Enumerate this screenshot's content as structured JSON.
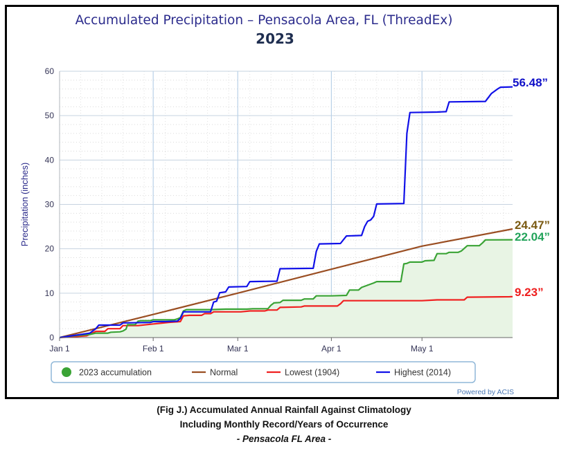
{
  "chart_data": {
    "type": "line",
    "title": "Accumulated Precipitation – Pensacola Area, FL (ThreadEx)",
    "subtitle": "2023",
    "ylabel": "Precipitation (inches)",
    "xlabel": "",
    "ylim": [
      0,
      60
    ],
    "xlim": [
      0,
      150
    ],
    "y_ticks": [
      0,
      10,
      20,
      30,
      40,
      50,
      60
    ],
    "x_ticks": [
      {
        "day": 0,
        "label": "Jan 1"
      },
      {
        "day": 31,
        "label": "Feb 1"
      },
      {
        "day": 59,
        "label": "Mar 1"
      },
      {
        "day": 90,
        "label": "Apr 1"
      },
      {
        "day": 120,
        "label": "May 1"
      }
    ],
    "x_unit": "days since Jan 1",
    "grid": true,
    "legend_position": "bottom",
    "credit": "Powered by ACIS",
    "series": [
      {
        "name": "2023 accumulation",
        "color": "#3aa335",
        "fill": "#e8f4e4",
        "end_label": "22.04”",
        "end_label_color": "#22a35a",
        "points": [
          [
            0,
            0
          ],
          [
            3,
            0.3
          ],
          [
            8,
            0.6
          ],
          [
            10,
            0.7
          ],
          [
            12,
            1.0
          ],
          [
            16,
            1.0
          ],
          [
            17,
            1.2
          ],
          [
            20,
            1.3
          ],
          [
            21,
            1.5
          ],
          [
            22,
            1.9
          ],
          [
            22.5,
            2.9
          ],
          [
            25,
            2.9
          ],
          [
            26,
            3.7
          ],
          [
            27,
            3.8
          ],
          [
            30,
            3.8
          ],
          [
            31,
            4.0
          ],
          [
            38,
            4.0
          ],
          [
            39,
            4.2
          ],
          [
            40,
            4.5
          ],
          [
            41,
            6.0
          ],
          [
            42,
            6.3
          ],
          [
            50,
            6.3
          ],
          [
            55,
            6.4
          ],
          [
            62,
            6.4
          ],
          [
            64,
            6.5
          ],
          [
            69,
            6.5
          ],
          [
            70,
            7.3
          ],
          [
            71,
            7.8
          ],
          [
            73,
            7.9
          ],
          [
            74,
            8.4
          ],
          [
            80,
            8.4
          ],
          [
            81,
            8.7
          ],
          [
            84,
            8.7
          ],
          [
            85,
            9.4
          ],
          [
            90,
            9.4
          ],
          [
            95,
            9.5
          ],
          [
            96,
            10.7
          ],
          [
            99,
            10.7
          ],
          [
            100,
            11.3
          ],
          [
            104,
            12.3
          ],
          [
            105,
            12.6
          ],
          [
            113,
            12.6
          ],
          [
            114,
            16.6
          ],
          [
            115,
            16.7
          ],
          [
            116,
            17.0
          ],
          [
            120,
            17.0
          ],
          [
            121,
            17.3
          ],
          [
            124,
            17.4
          ],
          [
            125,
            18.9
          ],
          [
            128,
            18.9
          ],
          [
            129,
            19.2
          ],
          [
            132,
            19.2
          ],
          [
            133,
            19.5
          ],
          [
            135,
            20.7
          ],
          [
            139,
            20.7
          ],
          [
            140,
            21.3
          ],
          [
            141,
            22.0
          ],
          [
            150,
            22.04
          ]
        ]
      },
      {
        "name": "Normal",
        "color": "#9a4e22",
        "end_label": "24.47”",
        "end_label_color": "#7a5a12",
        "points": [
          [
            0,
            0
          ],
          [
            31,
            5.2
          ],
          [
            59,
            10.0
          ],
          [
            90,
            15.4
          ],
          [
            120,
            20.6
          ],
          [
            150,
            24.47
          ]
        ]
      },
      {
        "name": "Lowest (1904)",
        "color": "#f02020",
        "end_label": "9.23”",
        "end_label_color": "#ee1d1d",
        "points": [
          [
            0,
            0
          ],
          [
            5,
            0.2
          ],
          [
            9,
            0.4
          ],
          [
            12,
            1.4
          ],
          [
            15,
            1.4
          ],
          [
            16,
            2.0
          ],
          [
            20,
            2.0
          ],
          [
            21,
            2.7
          ],
          [
            26,
            2.7
          ],
          [
            30,
            3.0
          ],
          [
            33,
            3.2
          ],
          [
            36,
            3.4
          ],
          [
            40,
            3.6
          ],
          [
            41,
            4.9
          ],
          [
            43,
            5.0
          ],
          [
            47,
            5.0
          ],
          [
            48,
            5.4
          ],
          [
            50,
            5.4
          ],
          [
            51,
            5.8
          ],
          [
            60,
            5.8
          ],
          [
            63,
            6.0
          ],
          [
            68,
            6.0
          ],
          [
            69,
            6.2
          ],
          [
            72,
            6.2
          ],
          [
            73,
            6.8
          ],
          [
            80,
            6.9
          ],
          [
            81,
            7.1
          ],
          [
            92,
            7.1
          ],
          [
            93,
            7.6
          ],
          [
            94,
            8.3
          ],
          [
            120,
            8.3
          ],
          [
            125,
            8.5
          ],
          [
            134,
            8.5
          ],
          [
            135,
            9.1
          ],
          [
            149,
            9.2
          ],
          [
            150,
            9.23
          ]
        ]
      },
      {
        "name": "Highest (2014)",
        "color": "#1010e8",
        "end_label": "56.48”",
        "end_label_color": "#1010c8",
        "points": [
          [
            0,
            0
          ],
          [
            5,
            0.5
          ],
          [
            10,
            1.0
          ],
          [
            11,
            1.5
          ],
          [
            12,
            2.0
          ],
          [
            13,
            2.8
          ],
          [
            20,
            2.8
          ],
          [
            21,
            3.3
          ],
          [
            30,
            3.4
          ],
          [
            31,
            3.6
          ],
          [
            35,
            3.6
          ],
          [
            39,
            3.7
          ],
          [
            40,
            4.3
          ],
          [
            41,
            5.8
          ],
          [
            50,
            5.8
          ],
          [
            51,
            8.0
          ],
          [
            52,
            8.2
          ],
          [
            53,
            10.1
          ],
          [
            54,
            10.2
          ],
          [
            55,
            10.3
          ],
          [
            56,
            11.4
          ],
          [
            62,
            11.5
          ],
          [
            63,
            12.6
          ],
          [
            72,
            12.7
          ],
          [
            73,
            15.5
          ],
          [
            84,
            15.6
          ],
          [
            85,
            19.4
          ],
          [
            86,
            21.1
          ],
          [
            93,
            21.2
          ],
          [
            95,
            22.9
          ],
          [
            100,
            23.0
          ],
          [
            101,
            25.0
          ],
          [
            102,
            26.2
          ],
          [
            103,
            26.5
          ],
          [
            104,
            27.3
          ],
          [
            105,
            30.1
          ],
          [
            114,
            30.2
          ],
          [
            115,
            46.0
          ],
          [
            116,
            50.7
          ],
          [
            125,
            50.8
          ],
          [
            128,
            50.9
          ],
          [
            129,
            53.1
          ],
          [
            141,
            53.2
          ],
          [
            143,
            55.0
          ],
          [
            145,
            56.0
          ],
          [
            146,
            56.4
          ],
          [
            150,
            56.48
          ]
        ]
      }
    ]
  },
  "caption": {
    "line1": "(Fig J.) Accumulated Annual Rainfall Against  Climatology",
    "line2": "Including Monthly Record/Years of Occurrence",
    "line3": "- Pensacola FL Area -"
  }
}
